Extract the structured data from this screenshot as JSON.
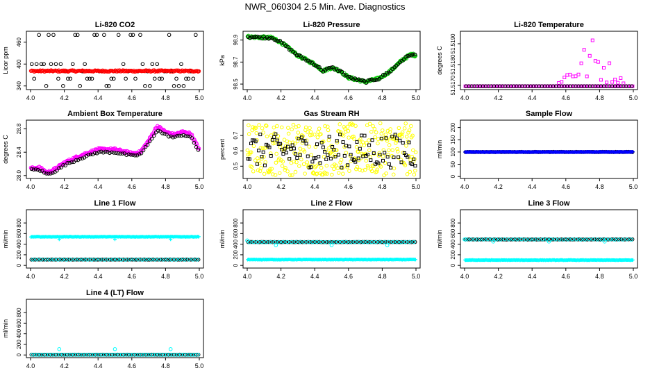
{
  "page": {
    "title": "NWR_060304  2.5 Min. Ave. Diagnostics"
  },
  "colors": {
    "black": "#000000",
    "red": "#ff0000",
    "green": "#00cc00",
    "magenta": "#ff00ff",
    "yellow": "#ffff00",
    "cyan": "#00ffff",
    "blue": "#0000ff"
  },
  "chart_data": [
    {
      "id": "co2",
      "type": "scatter",
      "title": "Li-820 CO2",
      "ylabel": "Licor ppm",
      "xlim": [
        4.0,
        5.0
      ],
      "ylim": [
        330,
        490
      ],
      "yticks": [
        "340",
        "400",
        "460"
      ],
      "yvals": [
        340,
        400,
        460
      ],
      "xticks": [
        "4.0",
        "4.2",
        "4.4",
        "4.6",
        "4.8",
        "5.0"
      ],
      "series": [
        {
          "name": "co2-scatter",
          "color": "black",
          "shape": "circle",
          "pattern": "levels",
          "levels": [
            340,
            360,
            380,
            400,
            480
          ],
          "n": 70
        },
        {
          "name": "co2-main",
          "color": "red",
          "shape": "circle",
          "pattern": "flat",
          "value": 381,
          "noise": 2,
          "n": 200
        }
      ]
    },
    {
      "id": "pressure",
      "type": "scatter",
      "title": "Li-820 Pressure",
      "ylabel": "kPa",
      "xlim": [
        4.0,
        5.0
      ],
      "ylim": [
        98.45,
        98.98
      ],
      "yticks": [
        "98.5",
        "98.7",
        "98.9"
      ],
      "yvals": [
        98.5,
        98.7,
        98.9
      ],
      "xticks": [
        "4.0",
        "4.2",
        "4.4",
        "4.6",
        "4.8",
        "5.0"
      ],
      "series": [
        {
          "name": "pressure-green",
          "color": "green",
          "shape": "circle",
          "pattern": "curve",
          "n": 220,
          "noise": 0.012,
          "curve": [
            [
              4.0,
              98.93
            ],
            [
              4.15,
              98.92
            ],
            [
              4.2,
              98.88
            ],
            [
              4.3,
              98.76
            ],
            [
              4.4,
              98.68
            ],
            [
              4.45,
              98.62
            ],
            [
              4.5,
              98.65
            ],
            [
              4.55,
              98.62
            ],
            [
              4.6,
              98.56
            ],
            [
              4.7,
              98.52
            ],
            [
              4.78,
              98.55
            ],
            [
              4.85,
              98.62
            ],
            [
              4.92,
              98.72
            ],
            [
              4.97,
              98.77
            ],
            [
              5.0,
              98.76
            ]
          ]
        },
        {
          "name": "pressure-black",
          "color": "black",
          "shape": "circle",
          "pattern": "curve",
          "n": 90,
          "noise": 0.01,
          "curve": [
            [
              4.0,
              98.93
            ],
            [
              4.15,
              98.92
            ],
            [
              4.2,
              98.88
            ],
            [
              4.3,
              98.76
            ],
            [
              4.4,
              98.68
            ],
            [
              4.45,
              98.62
            ],
            [
              4.5,
              98.65
            ],
            [
              4.55,
              98.62
            ],
            [
              4.6,
              98.56
            ],
            [
              4.7,
              98.52
            ],
            [
              4.78,
              98.55
            ],
            [
              4.85,
              98.62
            ],
            [
              4.92,
              98.72
            ],
            [
              4.97,
              98.77
            ],
            [
              5.0,
              98.76
            ]
          ]
        }
      ]
    },
    {
      "id": "temp820",
      "type": "scatter",
      "title": "Li-820 Temperature",
      "ylabel": "degrees C",
      "xlim": [
        4.0,
        5.0
      ],
      "ylim": [
        51.5168,
        51.5196
      ],
      "yticks": [
        "51.5170",
        "51.5180",
        "51.5190"
      ],
      "yvals": [
        51.517,
        51.518,
        51.519
      ],
      "xticks": [
        "4.0",
        "4.2",
        "4.4",
        "4.6",
        "4.8",
        "5.0"
      ],
      "series": [
        {
          "name": "temp820-magenta-base",
          "color": "magenta",
          "shape": "square",
          "pattern": "flat",
          "value": 51.51696,
          "noise": 0,
          "n": 110
        },
        {
          "name": "temp820-magenta-upper",
          "color": "magenta",
          "shape": "square",
          "pattern": "peak",
          "n": 60,
          "lo": 51.5171,
          "hi": 51.5194,
          "center": 4.75
        },
        {
          "name": "temp820-black",
          "color": "black",
          "shape": "circle",
          "pattern": "flat",
          "value": 51.51696,
          "noise": 0,
          "n": 60
        }
      ]
    },
    {
      "id": "ambient",
      "type": "scatter",
      "title": "Ambient Box Temperature",
      "ylabel": "degrees C",
      "xlim": [
        4.0,
        5.0
      ],
      "ylim": [
        27.95,
        28.95
      ],
      "yticks": [
        "28.0",
        "28.4",
        "28.8"
      ],
      "yvals": [
        28.0,
        28.4,
        28.8
      ],
      "xticks": [
        "4.0",
        "4.2",
        "4.4",
        "4.6",
        "4.8",
        "5.0"
      ],
      "series": [
        {
          "name": "ambient-magenta",
          "color": "magenta",
          "shape": "circle",
          "pattern": "curve",
          "n": 220,
          "noise": 0.02,
          "curve": [
            [
              4.0,
              28.12
            ],
            [
              4.05,
              28.14
            ],
            [
              4.1,
              28.05
            ],
            [
              4.15,
              28.12
            ],
            [
              4.2,
              28.22
            ],
            [
              4.3,
              28.35
            ],
            [
              4.4,
              28.45
            ],
            [
              4.5,
              28.45
            ],
            [
              4.6,
              28.38
            ],
            [
              4.65,
              28.4
            ],
            [
              4.7,
              28.6
            ],
            [
              4.75,
              28.85
            ],
            [
              4.8,
              28.75
            ],
            [
              4.85,
              28.7
            ],
            [
              4.9,
              28.75
            ],
            [
              4.95,
              28.72
            ],
            [
              4.98,
              28.55
            ],
            [
              5.0,
              28.45
            ]
          ]
        },
        {
          "name": "ambient-black",
          "color": "black",
          "shape": "circle",
          "pattern": "curve",
          "n": 80,
          "noise": 0.015,
          "curve": [
            [
              4.0,
              28.1
            ],
            [
              4.05,
              28.1
            ],
            [
              4.1,
              28.02
            ],
            [
              4.15,
              28.08
            ],
            [
              4.2,
              28.18
            ],
            [
              4.3,
              28.3
            ],
            [
              4.4,
              28.4
            ],
            [
              4.5,
              28.4
            ],
            [
              4.6,
              28.34
            ],
            [
              4.65,
              28.36
            ],
            [
              4.7,
              28.55
            ],
            [
              4.75,
              28.78
            ],
            [
              4.8,
              28.7
            ],
            [
              4.85,
              28.65
            ],
            [
              4.9,
              28.7
            ],
            [
              4.95,
              28.66
            ],
            [
              4.98,
              28.5
            ],
            [
              5.0,
              28.42
            ]
          ]
        }
      ]
    },
    {
      "id": "rh",
      "type": "scatter",
      "title": "Gas Stream RH",
      "ylabel": "percent",
      "xlim": [
        4.0,
        5.0
      ],
      "ylim": [
        0.42,
        0.8
      ],
      "yticks": [
        "0.5",
        "0.6",
        "0.7"
      ],
      "yvals": [
        0.5,
        0.6,
        0.7
      ],
      "xticks": [
        "4.0",
        "4.2",
        "4.4",
        "4.6",
        "4.8",
        "5.0"
      ],
      "series": [
        {
          "name": "rh-yellow",
          "color": "yellow",
          "shape": "circle",
          "pattern": "band",
          "value": 0.61,
          "noise": 0.17,
          "n": 320
        },
        {
          "name": "rh-black",
          "color": "black",
          "shape": "square",
          "pattern": "band",
          "value": 0.6,
          "noise": 0.11,
          "n": 110
        }
      ]
    },
    {
      "id": "sample",
      "type": "scatter",
      "title": "Sample Flow",
      "ylabel": "ml/min",
      "xlim": [
        4.0,
        5.0
      ],
      "ylim": [
        -8,
        230
      ],
      "yticks": [
        "0",
        "50",
        "100",
        "150",
        "200"
      ],
      "yvals": [
        0,
        50,
        100,
        150,
        200
      ],
      "xticks": [
        "4.0",
        "4.2",
        "4.4",
        "4.6",
        "4.8",
        "5.0"
      ],
      "series": [
        {
          "name": "sample-black",
          "color": "black",
          "shape": "circle",
          "pattern": "flat",
          "value": 100,
          "noise": 0.5,
          "n": 90
        },
        {
          "name": "sample-blue",
          "color": "blue",
          "shape": "plus",
          "pattern": "flat",
          "value": 100,
          "noise": 1,
          "n": 230
        }
      ]
    },
    {
      "id": "line1",
      "type": "scatter",
      "title": "Line 1 Flow",
      "ylabel": "ml/min",
      "xlim": [
        4.0,
        5.0
      ],
      "ylim": [
        -50,
        1050
      ],
      "yticks": [
        "0",
        "200",
        "400",
        "600",
        "800"
      ],
      "yvals": [
        0,
        200,
        400,
        600,
        800
      ],
      "xticks": [
        "4.0",
        "4.2",
        "4.4",
        "4.6",
        "4.8",
        "5.0"
      ],
      "series": [
        {
          "name": "line1-cyan-top",
          "color": "cyan",
          "shape": "plus",
          "pattern": "flat",
          "value": 540,
          "noise": 4,
          "n": 230,
          "outliers": [
            [
              4.17,
              490
            ],
            [
              4.5,
              490
            ],
            [
              4.83,
              490
            ]
          ]
        },
        {
          "name": "line1-black",
          "color": "black",
          "shape": "circle",
          "pattern": "flat",
          "value": 110,
          "noise": 1,
          "n": 90
        },
        {
          "name": "line1-cyan-low",
          "color": "cyan",
          "shape": "circle",
          "pattern": "flat",
          "value": 110,
          "noise": 2,
          "n": 40
        }
      ]
    },
    {
      "id": "line2",
      "type": "scatter",
      "title": "Line 2 Flow",
      "ylabel": "ml/min",
      "xlim": [
        4.0,
        5.0
      ],
      "ylim": [
        -50,
        1050
      ],
      "yticks": [
        "0",
        "200",
        "400",
        "600",
        "800"
      ],
      "yvals": [
        0,
        200,
        400,
        600,
        800
      ],
      "xticks": [
        "4.0",
        "4.2",
        "4.4",
        "4.6",
        "4.8",
        "5.0"
      ],
      "series": [
        {
          "name": "line2-cyan-low",
          "color": "cyan",
          "shape": "plus",
          "pattern": "flat",
          "value": 110,
          "noise": 4,
          "n": 230
        },
        {
          "name": "line2-black",
          "color": "black",
          "shape": "circle",
          "pattern": "flat",
          "value": 440,
          "noise": 2,
          "n": 90
        },
        {
          "name": "line2-cyan-top",
          "color": "cyan",
          "shape": "circle",
          "pattern": "flat",
          "value": 440,
          "noise": 3,
          "n": 40,
          "outliers": [
            [
              4.0,
              470
            ],
            [
              4.17,
              380
            ],
            [
              4.5,
              380
            ],
            [
              4.83,
              380
            ]
          ]
        }
      ]
    },
    {
      "id": "line3",
      "type": "scatter",
      "title": "Line 3 Flow",
      "ylabel": "ml/min",
      "xlim": [
        4.0,
        5.0
      ],
      "ylim": [
        -50,
        1050
      ],
      "yticks": [
        "0",
        "200",
        "400",
        "600",
        "800"
      ],
      "yvals": [
        0,
        200,
        400,
        600,
        800
      ],
      "xticks": [
        "4.0",
        "4.2",
        "4.4",
        "4.6",
        "4.8",
        "5.0"
      ],
      "series": [
        {
          "name": "line3-cyan-low",
          "color": "cyan",
          "shape": "plus",
          "pattern": "flat",
          "value": 100,
          "noise": 4,
          "n": 230
        },
        {
          "name": "line3-black",
          "color": "black",
          "shape": "circle",
          "pattern": "flat",
          "value": 490,
          "noise": 2,
          "n": 90
        },
        {
          "name": "line3-cyan-top",
          "color": "cyan",
          "shape": "circle",
          "pattern": "flat",
          "value": 490,
          "noise": 3,
          "n": 40,
          "outliers": [
            [
              4.0,
              490
            ],
            [
              4.17,
              450
            ],
            [
              4.5,
              450
            ],
            [
              4.83,
              450
            ]
          ]
        }
      ]
    },
    {
      "id": "line4",
      "type": "scatter",
      "title": "Line 4 (LT) Flow",
      "ylabel": "ml/min",
      "xlim": [
        4.0,
        5.0
      ],
      "ylim": [
        -50,
        1050
      ],
      "yticks": [
        "0",
        "200",
        "400",
        "600",
        "800"
      ],
      "yvals": [
        0,
        200,
        400,
        600,
        800
      ],
      "xticks": [
        "4.0",
        "4.2",
        "4.4",
        "4.6",
        "4.8",
        "5.0"
      ],
      "series": [
        {
          "name": "line4-black",
          "color": "black",
          "shape": "circle",
          "pattern": "flat",
          "value": 5,
          "noise": 1,
          "n": 90
        },
        {
          "name": "line4-cyan",
          "color": "cyan",
          "shape": "circle",
          "pattern": "flat",
          "value": 5,
          "noise": 2,
          "n": 60,
          "outliers": [
            [
              4.17,
              110
            ],
            [
              4.5,
              110
            ],
            [
              4.83,
              110
            ]
          ]
        }
      ]
    }
  ]
}
